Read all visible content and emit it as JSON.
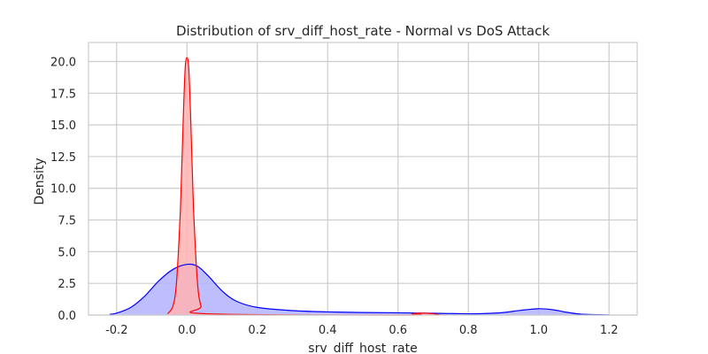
{
  "chart_data": {
    "type": "area",
    "title": "Distribution of srv_diff_host_rate - Normal vs DoS Attack",
    "xlabel": "srv_diff_host_rate",
    "ylabel": "Density",
    "xlim": [
      -0.28,
      1.28
    ],
    "ylim": [
      0,
      21.5
    ],
    "x_ticks": [
      -0.2,
      0.0,
      0.2,
      0.4,
      0.6,
      0.8,
      1.0,
      1.2
    ],
    "y_ticks": [
      0.0,
      2.5,
      5.0,
      7.5,
      10.0,
      12.5,
      15.0,
      17.5,
      20.0
    ],
    "grid": true,
    "series": [
      {
        "color": "#0000ff",
        "fill": "#b3b3ff",
        "x": [
          -0.22,
          -0.2,
          -0.16,
          -0.12,
          -0.08,
          -0.04,
          0.0,
          0.03,
          0.06,
          0.1,
          0.14,
          0.2,
          0.3,
          0.4,
          0.5,
          0.6,
          0.7,
          0.8,
          0.85,
          0.9,
          0.95,
          1.0,
          1.04,
          1.08,
          1.12,
          1.2
        ],
        "values": [
          0.05,
          0.15,
          0.6,
          1.5,
          2.7,
          3.6,
          4.0,
          3.85,
          3.1,
          1.9,
          1.1,
          0.6,
          0.35,
          0.25,
          0.2,
          0.18,
          0.14,
          0.1,
          0.12,
          0.2,
          0.38,
          0.5,
          0.42,
          0.22,
          0.07,
          0.01
        ]
      },
      {
        "color": "#ff0000",
        "fill": "#ffb3b3",
        "x": [
          -0.055,
          -0.04,
          -0.03,
          -0.02,
          -0.015,
          -0.01,
          -0.005,
          0.0,
          0.005,
          0.01,
          0.015,
          0.02,
          0.03,
          0.04,
          0.055,
          0.62,
          0.64,
          0.67,
          0.7,
          0.72
        ],
        "values": [
          0.1,
          0.7,
          2.5,
          7.5,
          11.5,
          16.0,
          19.5,
          20.3,
          19.5,
          16.0,
          11.5,
          7.5,
          2.5,
          0.7,
          0.1,
          0.0,
          0.1,
          0.15,
          0.1,
          0.0
        ]
      }
    ]
  }
}
